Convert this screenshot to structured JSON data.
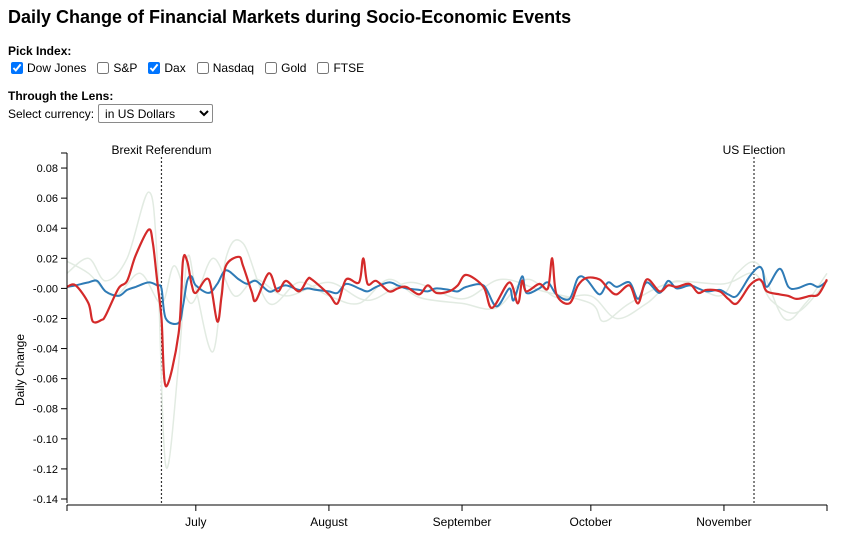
{
  "header": {
    "title": "Daily Change of Financial Markets during Socio-Economic Events"
  },
  "controls": {
    "pick_label": "Pick Index:",
    "indices": [
      {
        "label": "Dow Jones",
        "checked": true
      },
      {
        "label": "S&P",
        "checked": false
      },
      {
        "label": "Dax",
        "checked": true
      },
      {
        "label": "Nasdaq",
        "checked": false
      },
      {
        "label": "Gold",
        "checked": false
      },
      {
        "label": "FTSE",
        "checked": false
      }
    ],
    "lens_label": "Through the Lens:",
    "currency_label": "Select currency:",
    "currency_selected": "in US Dollars"
  },
  "colors": {
    "dow_jones": "#2f7bb6",
    "dax": "#d42a2a",
    "inactive": "#e2ebe2"
  },
  "chart_data": {
    "type": "line",
    "title": "",
    "xlabel": "",
    "ylabel": "Daily Change",
    "x_range": [
      "2016-06-01",
      "2016-11-25"
    ],
    "ylim": [
      -0.14,
      0.09
    ],
    "y_ticks": [
      "0.08",
      "0.06",
      "0.04",
      "0.02",
      "-0.00",
      "-0.02",
      "-0.04",
      "-0.06",
      "-0.08",
      "-0.10",
      "-0.12",
      "-0.14"
    ],
    "x_ticks": [
      {
        "date": "2016-07-01",
        "label": "July"
      },
      {
        "date": "2016-08-01",
        "label": "August"
      },
      {
        "date": "2016-09-01",
        "label": "September"
      },
      {
        "date": "2016-10-01",
        "label": "October"
      },
      {
        "date": "2016-11-01",
        "label": "November"
      }
    ],
    "events": [
      {
        "date": "2016-06-23",
        "label": "Brexit Referendum"
      },
      {
        "date": "2016-11-08",
        "label": "US Election"
      }
    ],
    "series": [
      {
        "name": "Dow Jones",
        "color": "#2f7bb6",
        "active": true,
        "points": [
          [
            "2016-06-01",
            0.001
          ],
          [
            "2016-06-03",
            0.002
          ],
          [
            "2016-06-06",
            0.004
          ],
          [
            "2016-06-08",
            0.005
          ],
          [
            "2016-06-10",
            -0.002
          ],
          [
            "2016-06-13",
            -0.005
          ],
          [
            "2016-06-15",
            -0.001
          ],
          [
            "2016-06-17",
            0.001
          ],
          [
            "2016-06-20",
            0.004
          ],
          [
            "2016-06-22",
            0.002
          ],
          [
            "2016-06-23",
            0.0
          ],
          [
            "2016-06-24",
            -0.02
          ],
          [
            "2016-06-27",
            -0.023
          ],
          [
            "2016-06-28",
            -0.012
          ],
          [
            "2016-06-29",
            0.005
          ],
          [
            "2016-06-30",
            0.008
          ],
          [
            "2016-07-01",
            0.002
          ],
          [
            "2016-07-04",
            -0.003
          ],
          [
            "2016-07-06",
            0.003
          ],
          [
            "2016-07-08",
            0.012
          ],
          [
            "2016-07-11",
            0.006
          ],
          [
            "2016-07-13",
            0.003
          ],
          [
            "2016-07-15",
            0.005
          ],
          [
            "2016-07-18",
            -0.002
          ],
          [
            "2016-07-20",
            0.0
          ],
          [
            "2016-07-22",
            0.002
          ],
          [
            "2016-07-25",
            -0.001
          ],
          [
            "2016-07-27",
            0.0
          ],
          [
            "2016-07-29",
            -0.001
          ],
          [
            "2016-08-01",
            -0.002
          ],
          [
            "2016-08-03",
            -0.003
          ],
          [
            "2016-08-05",
            0.003
          ],
          [
            "2016-08-08",
            0.0
          ],
          [
            "2016-08-10",
            -0.002
          ],
          [
            "2016-08-12",
            0.001
          ],
          [
            "2016-08-15",
            0.004
          ],
          [
            "2016-08-17",
            0.002
          ],
          [
            "2016-08-19",
            0.0
          ],
          [
            "2016-08-22",
            -0.001
          ],
          [
            "2016-08-24",
            -0.002
          ],
          [
            "2016-08-26",
            0.0
          ],
          [
            "2016-08-29",
            -0.001
          ],
          [
            "2016-08-31",
            -0.002
          ],
          [
            "2016-09-02",
            0.001
          ],
          [
            "2016-09-06",
            0.002
          ],
          [
            "2016-09-09",
            -0.012
          ],
          [
            "2016-09-12",
            0.0
          ],
          [
            "2016-09-13",
            -0.008
          ],
          [
            "2016-09-15",
            0.008
          ],
          [
            "2016-09-16",
            -0.003
          ],
          [
            "2016-09-19",
            0.0
          ],
          [
            "2016-09-21",
            0.004
          ],
          [
            "2016-09-23",
            -0.004
          ],
          [
            "2016-09-26",
            -0.007
          ],
          [
            "2016-09-28",
            0.007
          ],
          [
            "2016-09-30",
            0.006
          ],
          [
            "2016-10-03",
            -0.004
          ],
          [
            "2016-10-05",
            0.004
          ],
          [
            "2016-10-07",
            0.001
          ],
          [
            "2016-10-10",
            0.004
          ],
          [
            "2016-10-12",
            -0.007
          ],
          [
            "2016-10-14",
            0.004
          ],
          [
            "2016-10-17",
            -0.003
          ],
          [
            "2016-10-19",
            0.005
          ],
          [
            "2016-10-21",
            0.0
          ],
          [
            "2016-10-24",
            0.002
          ],
          [
            "2016-10-26",
            0.0
          ],
          [
            "2016-10-28",
            -0.002
          ],
          [
            "2016-10-31",
            -0.001
          ],
          [
            "2016-11-02",
            -0.004
          ],
          [
            "2016-11-04",
            -0.005
          ],
          [
            "2016-11-07",
            0.008
          ],
          [
            "2016-11-09",
            0.014
          ],
          [
            "2016-11-10",
            0.012
          ],
          [
            "2016-11-11",
            0.001
          ],
          [
            "2016-11-14",
            0.013
          ],
          [
            "2016-11-16",
            0.001
          ],
          [
            "2016-11-18",
            0.0
          ],
          [
            "2016-11-21",
            0.003
          ],
          [
            "2016-11-23",
            0.001
          ],
          [
            "2016-11-25",
            0.005
          ]
        ]
      },
      {
        "name": "Dax",
        "color": "#d42a2a",
        "active": true,
        "points": [
          [
            "2016-06-01",
            0.001
          ],
          [
            "2016-06-03",
            0.002
          ],
          [
            "2016-06-06",
            -0.01
          ],
          [
            "2016-06-07",
            -0.022
          ],
          [
            "2016-06-09",
            -0.021
          ],
          [
            "2016-06-10",
            -0.018
          ],
          [
            "2016-06-13",
            0.0
          ],
          [
            "2016-06-15",
            0.005
          ],
          [
            "2016-06-17",
            0.022
          ],
          [
            "2016-06-20",
            0.039
          ],
          [
            "2016-06-21",
            0.03
          ],
          [
            "2016-06-22",
            0.005
          ],
          [
            "2016-06-23",
            -0.02
          ],
          [
            "2016-06-24",
            -0.065
          ],
          [
            "2016-06-27",
            -0.03
          ],
          [
            "2016-06-28",
            0.018
          ],
          [
            "2016-06-29",
            0.018
          ],
          [
            "2016-06-30",
            0.003
          ],
          [
            "2016-07-01",
            -0.003
          ],
          [
            "2016-07-04",
            0.006
          ],
          [
            "2016-07-06",
            -0.022
          ],
          [
            "2016-07-07",
            -0.005
          ],
          [
            "2016-07-08",
            0.015
          ],
          [
            "2016-07-11",
            0.021
          ],
          [
            "2016-07-12",
            0.015
          ],
          [
            "2016-07-14",
            -0.002
          ],
          [
            "2016-07-15",
            -0.008
          ],
          [
            "2016-07-18",
            0.01
          ],
          [
            "2016-07-20",
            -0.002
          ],
          [
            "2016-07-22",
            0.005
          ],
          [
            "2016-07-25",
            -0.002
          ],
          [
            "2016-07-27",
            0.006
          ],
          [
            "2016-07-28",
            0.006
          ],
          [
            "2016-08-01",
            -0.004
          ],
          [
            "2016-08-03",
            -0.01
          ],
          [
            "2016-08-05",
            0.006
          ],
          [
            "2016-08-08",
            0.004
          ],
          [
            "2016-08-09",
            0.02
          ],
          [
            "2016-08-10",
            0.003
          ],
          [
            "2016-08-12",
            0.005
          ],
          [
            "2016-08-15",
            -0.002
          ],
          [
            "2016-08-17",
            0.0
          ],
          [
            "2016-08-19",
            0.001
          ],
          [
            "2016-08-22",
            -0.004
          ],
          [
            "2016-08-24",
            0.002
          ],
          [
            "2016-08-26",
            -0.003
          ],
          [
            "2016-08-29",
            -0.002
          ],
          [
            "2016-08-31",
            0.002
          ],
          [
            "2016-09-02",
            0.009
          ],
          [
            "2016-09-06",
            0.001
          ],
          [
            "2016-09-08",
            -0.013
          ],
          [
            "2016-09-12",
            0.004
          ],
          [
            "2016-09-14",
            -0.01
          ],
          [
            "2016-09-15",
            0.005
          ],
          [
            "2016-09-16",
            -0.002
          ],
          [
            "2016-09-19",
            0.003
          ],
          [
            "2016-09-21",
            0.0
          ],
          [
            "2016-09-22",
            0.02
          ],
          [
            "2016-09-23",
            -0.004
          ],
          [
            "2016-09-26",
            -0.01
          ],
          [
            "2016-09-28",
            0.002
          ],
          [
            "2016-09-30",
            0.007
          ],
          [
            "2016-10-03",
            0.006
          ],
          [
            "2016-10-05",
            0.0
          ],
          [
            "2016-10-07",
            -0.004
          ],
          [
            "2016-10-10",
            0.002
          ],
          [
            "2016-10-12",
            -0.01
          ],
          [
            "2016-10-14",
            0.006
          ],
          [
            "2016-10-17",
            -0.002
          ],
          [
            "2016-10-19",
            0.002
          ],
          [
            "2016-10-21",
            0.001
          ],
          [
            "2016-10-24",
            0.003
          ],
          [
            "2016-10-26",
            -0.003
          ],
          [
            "2016-10-28",
            -0.001
          ],
          [
            "2016-10-31",
            -0.002
          ],
          [
            "2016-11-02",
            -0.007
          ],
          [
            "2016-11-04",
            -0.01
          ],
          [
            "2016-11-07",
            0.002
          ],
          [
            "2016-11-09",
            0.006
          ],
          [
            "2016-11-10",
            0.004
          ],
          [
            "2016-11-11",
            -0.002
          ],
          [
            "2016-11-14",
            -0.004
          ],
          [
            "2016-11-16",
            -0.005
          ],
          [
            "2016-11-18",
            -0.007
          ],
          [
            "2016-11-21",
            -0.005
          ],
          [
            "2016-11-23",
            -0.004
          ],
          [
            "2016-11-25",
            0.006
          ]
        ]
      },
      {
        "name": "S&P",
        "color": "#e2ebe2",
        "active": false,
        "points": [
          [
            "2016-06-01",
            0.01
          ],
          [
            "2016-06-06",
            0.02
          ],
          [
            "2016-06-10",
            0.005
          ],
          [
            "2016-06-15",
            0.02
          ],
          [
            "2016-06-20",
            0.064
          ],
          [
            "2016-06-22",
            0.02
          ],
          [
            "2016-06-24",
            -0.118
          ],
          [
            "2016-06-27",
            -0.05
          ],
          [
            "2016-06-29",
            0.02
          ],
          [
            "2016-07-01",
            0.0
          ],
          [
            "2016-07-05",
            -0.042
          ],
          [
            "2016-07-08",
            0.02
          ],
          [
            "2016-07-12",
            0.03
          ],
          [
            "2016-07-18",
            -0.01
          ],
          [
            "2016-07-25",
            0.004
          ],
          [
            "2016-08-01",
            -0.005
          ],
          [
            "2016-08-08",
            -0.01
          ],
          [
            "2016-08-15",
            0.006
          ],
          [
            "2016-08-22",
            -0.006
          ],
          [
            "2016-09-01",
            -0.01
          ],
          [
            "2016-09-09",
            -0.013
          ],
          [
            "2016-09-16",
            0.006
          ],
          [
            "2016-09-23",
            -0.006
          ],
          [
            "2016-10-01",
            -0.005
          ],
          [
            "2016-10-07",
            -0.02
          ],
          [
            "2016-10-14",
            -0.01
          ],
          [
            "2016-10-21",
            0.005
          ],
          [
            "2016-10-31",
            -0.005
          ],
          [
            "2016-11-04",
            0.01
          ],
          [
            "2016-11-09",
            0.016
          ],
          [
            "2016-11-15",
            -0.02
          ],
          [
            "2016-11-20",
            -0.01
          ],
          [
            "2016-11-25",
            0.01
          ]
        ]
      },
      {
        "name": "Gold",
        "color": "#e2ebe2",
        "active": false,
        "points": [
          [
            "2016-06-01",
            0.018
          ],
          [
            "2016-06-06",
            0.01
          ],
          [
            "2016-06-12",
            -0.005
          ],
          [
            "2016-06-18",
            0.01
          ],
          [
            "2016-06-23",
            -0.01
          ],
          [
            "2016-06-26",
            0.015
          ],
          [
            "2016-06-30",
            -0.01
          ],
          [
            "2016-07-05",
            0.02
          ],
          [
            "2016-07-10",
            -0.005
          ],
          [
            "2016-07-15",
            0.006
          ],
          [
            "2016-07-22",
            -0.005
          ],
          [
            "2016-08-01",
            0.004
          ],
          [
            "2016-08-10",
            -0.008
          ],
          [
            "2016-08-20",
            0.004
          ],
          [
            "2016-09-01",
            -0.007
          ],
          [
            "2016-09-10",
            0.006
          ],
          [
            "2016-09-20",
            -0.002
          ],
          [
            "2016-10-01",
            -0.01
          ],
          [
            "2016-10-04",
            -0.022
          ],
          [
            "2016-10-10",
            -0.01
          ],
          [
            "2016-10-20",
            0.004
          ],
          [
            "2016-11-01",
            0.003
          ],
          [
            "2016-11-08",
            0.01
          ],
          [
            "2016-11-12",
            -0.008
          ],
          [
            "2016-11-18",
            -0.016
          ],
          [
            "2016-11-25",
            0.005
          ]
        ]
      }
    ]
  }
}
